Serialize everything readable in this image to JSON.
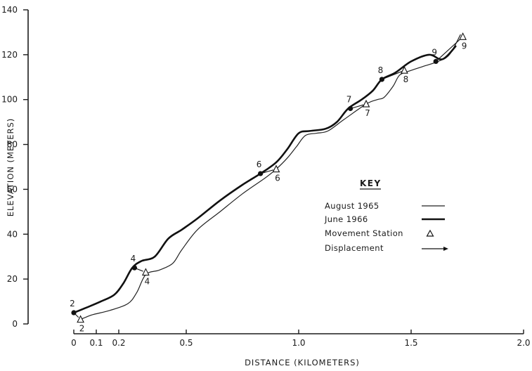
{
  "chart_data": {
    "type": "line",
    "xlabel": "DISTANCE  (KILOMETERS)",
    "ylabel": "ELEVATION  (METERS)",
    "xlim": [
      0,
      2.0
    ],
    "ylim": [
      0,
      140
    ],
    "x_ticks": [
      {
        "value": 0,
        "label": "0"
      },
      {
        "value": 0.1,
        "label": "0.1"
      },
      {
        "value": 0.2,
        "label": "0.2"
      },
      {
        "value": 0.5,
        "label": "0.5"
      },
      {
        "value": 1.0,
        "label": "1.0"
      },
      {
        "value": 1.5,
        "label": "1.5"
      },
      {
        "value": 2.0,
        "label": "2.0"
      }
    ],
    "y_ticks": [
      0,
      20,
      40,
      60,
      80,
      100,
      120,
      140
    ],
    "grid": false,
    "series": [
      {
        "name": "August 1965",
        "style": "thin",
        "x": [
          0.03,
          0.08,
          0.16,
          0.24,
          0.28,
          0.32,
          0.38,
          0.44,
          0.48,
          0.55,
          0.65,
          0.75,
          0.85,
          0.9,
          0.95,
          0.99,
          1.03,
          1.08,
          1.13,
          1.2,
          1.3,
          1.35,
          1.38,
          1.42,
          1.45,
          1.5,
          1.56,
          1.62,
          1.67,
          1.72
        ],
        "y": [
          2,
          4,
          6,
          9,
          14,
          22,
          24,
          27,
          33,
          42,
          50,
          58,
          65,
          69,
          74,
          79,
          84,
          85,
          86,
          91,
          98,
          100,
          101,
          106,
          111,
          113,
          115,
          117,
          120,
          129
        ]
      },
      {
        "name": "June 1966",
        "style": "thick",
        "x": [
          0.0,
          0.05,
          0.12,
          0.18,
          0.22,
          0.26,
          0.3,
          0.36,
          0.42,
          0.48,
          0.55,
          0.65,
          0.75,
          0.83,
          0.9,
          0.95,
          1.0,
          1.05,
          1.12,
          1.17,
          1.22,
          1.28,
          1.33,
          1.37,
          1.43,
          1.5,
          1.58,
          1.64,
          1.7
        ],
        "y": [
          5,
          7,
          10,
          13,
          18,
          25,
          28,
          30,
          38,
          42,
          47,
          55,
          62,
          67,
          72,
          78,
          85,
          86,
          87,
          90,
          96,
          100,
          104,
          109,
          112,
          117,
          120,
          118,
          124
        ]
      }
    ],
    "stations": [
      {
        "label": "2",
        "aug": [
          0.03,
          2
        ],
        "jun": [
          0.0,
          5
        ]
      },
      {
        "label": "4",
        "aug": [
          0.32,
          23
        ],
        "jun": [
          0.27,
          25
        ]
      },
      {
        "label": "6",
        "aug": [
          0.9,
          69
        ],
        "jun": [
          0.83,
          67
        ]
      },
      {
        "label": "7",
        "aug": [
          1.3,
          98
        ],
        "jun": [
          1.23,
          96
        ]
      },
      {
        "label": "8",
        "aug": [
          1.47,
          113
        ],
        "jun": [
          1.37,
          109
        ]
      },
      {
        "label": "9",
        "aug": [
          1.73,
          128
        ],
        "jun": [
          1.61,
          117
        ]
      }
    ],
    "legend": {
      "title": "KEY",
      "placement": "right-middle",
      "items": [
        {
          "label": "August  1965",
          "symbol": "thin-line"
        },
        {
          "label": "June   1966",
          "symbol": "thick-line"
        },
        {
          "label": "Movement  Station",
          "symbol": "triangle"
        },
        {
          "label": "Displacement",
          "symbol": "arrow"
        }
      ]
    }
  }
}
